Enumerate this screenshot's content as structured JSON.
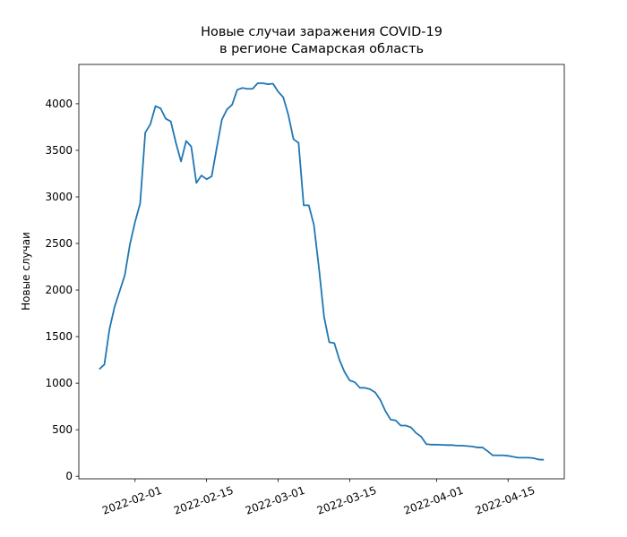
{
  "chart_data": {
    "type": "line",
    "title": [
      "Новые случаи заражения COVID-19",
      "в регионе Самарская область"
    ],
    "y_label": "Новые случаи",
    "color": "#1f77b4",
    "x": [
      "2022-01-25",
      "2022-01-26",
      "2022-01-27",
      "2022-01-28",
      "2022-01-29",
      "2022-01-30",
      "2022-01-31",
      "2022-02-01",
      "2022-02-02",
      "2022-02-03",
      "2022-02-04",
      "2022-02-05",
      "2022-02-06",
      "2022-02-07",
      "2022-02-08",
      "2022-02-09",
      "2022-02-10",
      "2022-02-11",
      "2022-02-12",
      "2022-02-13",
      "2022-02-14",
      "2022-02-15",
      "2022-02-16",
      "2022-02-17",
      "2022-02-18",
      "2022-02-19",
      "2022-02-20",
      "2022-02-21",
      "2022-02-22",
      "2022-02-23",
      "2022-02-24",
      "2022-02-25",
      "2022-02-26",
      "2022-02-27",
      "2022-02-28",
      "2022-03-01",
      "2022-03-02",
      "2022-03-03",
      "2022-03-04",
      "2022-03-05",
      "2022-03-06",
      "2022-03-07",
      "2022-03-08",
      "2022-03-09",
      "2022-03-10",
      "2022-03-11",
      "2022-03-12",
      "2022-03-13",
      "2022-03-14",
      "2022-03-15",
      "2022-03-16",
      "2022-03-17",
      "2022-03-18",
      "2022-03-19",
      "2022-03-20",
      "2022-03-21",
      "2022-03-22",
      "2022-03-23",
      "2022-03-24",
      "2022-03-25",
      "2022-03-26",
      "2022-03-27",
      "2022-03-28",
      "2022-03-29",
      "2022-03-30",
      "2022-03-31",
      "2022-04-01",
      "2022-04-02",
      "2022-04-03",
      "2022-04-04",
      "2022-04-05",
      "2022-04-06",
      "2022-04-07",
      "2022-04-08",
      "2022-04-09",
      "2022-04-10",
      "2022-04-11",
      "2022-04-12",
      "2022-04-13",
      "2022-04-14",
      "2022-04-15",
      "2022-04-16",
      "2022-04-17",
      "2022-04-18",
      "2022-04-19",
      "2022-04-20",
      "2022-04-21",
      "2022-04-22"
    ],
    "values": [
      1150,
      1200,
      1580,
      1820,
      1990,
      2160,
      2490,
      2730,
      2930,
      3690,
      3780,
      3975,
      3950,
      3840,
      3810,
      3580,
      3380,
      3600,
      3540,
      3150,
      3230,
      3190,
      3220,
      3530,
      3830,
      3940,
      3990,
      4150,
      4170,
      4160,
      4160,
      4220,
      4220,
      4210,
      4215,
      4130,
      4070,
      3880,
      3620,
      3580,
      2910,
      2910,
      2700,
      2230,
      1710,
      1440,
      1430,
      1250,
      1120,
      1030,
      1010,
      950,
      950,
      935,
      900,
      820,
      700,
      610,
      600,
      545,
      545,
      525,
      465,
      425,
      345,
      340,
      340,
      338,
      335,
      335,
      330,
      330,
      325,
      320,
      310,
      310,
      270,
      225,
      225,
      225,
      220,
      210,
      200,
      200,
      200,
      195,
      180,
      178
    ],
    "xlim": [
      "2022-01-21",
      "2022-04-26"
    ],
    "xticks": [
      "2022-02-01",
      "2022-02-15",
      "2022-03-01",
      "2022-03-15",
      "2022-04-01",
      "2022-04-15"
    ],
    "ylim": [
      -27,
      4422
    ],
    "yticks": [
      0,
      500,
      1000,
      1500,
      2000,
      2500,
      3000,
      3500,
      4000
    ],
    "grid": false
  }
}
